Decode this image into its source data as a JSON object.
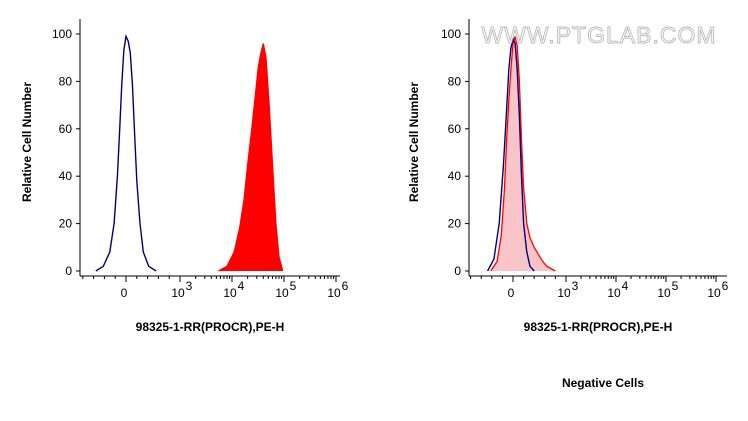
{
  "watermark": "WWW.PTGLAB.COM",
  "caption": "Negative Cells",
  "chart_data": [
    {
      "type": "area",
      "xlabel": "98325-1-RR(PROCR),PE-H",
      "ylabel": "Relative Cell Number",
      "x_scale": "biexponential",
      "xlim": [
        -1000,
        1200000
      ],
      "ylim": [
        0,
        100
      ],
      "y_ticks": [
        0,
        20,
        40,
        60,
        80,
        100
      ],
      "x_tick_labels": [
        {
          "value": 0,
          "base": "0",
          "exp": ""
        },
        {
          "value": 1000,
          "base": "10",
          "exp": "3"
        },
        {
          "value": 10000,
          "base": "10",
          "exp": "4"
        },
        {
          "value": 100000,
          "base": "10",
          "exp": "5"
        },
        {
          "value": 1000000,
          "base": "10",
          "exp": "6"
        }
      ],
      "grid": false,
      "series": [
        {
          "style": "outline",
          "color": "#00007f",
          "x": [
            -560,
            -420,
            -300,
            -220,
            -160,
            -120,
            -80,
            -40,
            0,
            40,
            80,
            120,
            160,
            200,
            260,
            320,
            420,
            560
          ],
          "y": [
            0,
            2,
            8,
            20,
            40,
            58,
            78,
            93,
            99,
            97,
            92,
            78,
            58,
            38,
            20,
            8,
            2,
            0
          ]
        },
        {
          "style": "filled",
          "color": "#ff0000",
          "x": [
            5500,
            8000,
            11000,
            14000,
            17000,
            20000,
            24000,
            28000,
            32000,
            36000,
            40000,
            45000,
            52000,
            60000,
            70000,
            80000,
            95000
          ],
          "y": [
            0,
            2,
            8,
            18,
            30,
            45,
            60,
            74,
            86,
            92,
            96,
            90,
            70,
            45,
            20,
            6,
            0
          ]
        }
      ]
    },
    {
      "type": "area",
      "xlabel": "98325-1-RR(PROCR),PE-H",
      "ylabel": "Relative Cell Number",
      "x_scale": "biexponential",
      "xlim": [
        -1000,
        1200000
      ],
      "ylim": [
        0,
        100
      ],
      "y_ticks": [
        0,
        20,
        40,
        60,
        80,
        100
      ],
      "x_tick_labels": [
        {
          "value": 0,
          "base": "0",
          "exp": ""
        },
        {
          "value": 1000,
          "base": "10",
          "exp": "3"
        },
        {
          "value": 10000,
          "base": "10",
          "exp": "4"
        },
        {
          "value": 100000,
          "base": "10",
          "exp": "5"
        },
        {
          "value": 1000000,
          "base": "10",
          "exp": "6"
        }
      ],
      "grid": false,
      "series": [
        {
          "style": "filled",
          "color": "#ff0000",
          "fill": "#f9c4c8",
          "x": [
            -420,
            -300,
            -220,
            -160,
            -120,
            -80,
            -40,
            0,
            40,
            80,
            120,
            160,
            200,
            260,
            320,
            400,
            480,
            560,
            640,
            800
          ],
          "y": [
            0,
            4,
            15,
            35,
            55,
            72,
            85,
            96,
            99,
            95,
            80,
            55,
            35,
            20,
            14,
            10,
            7,
            4,
            2,
            0
          ]
        },
        {
          "style": "outline",
          "color": "#00007f",
          "x": [
            -480,
            -360,
            -260,
            -180,
            -120,
            -80,
            -40,
            0,
            40,
            80,
            120,
            160,
            200,
            260,
            320,
            400
          ],
          "y": [
            0,
            5,
            20,
            45,
            68,
            85,
            94,
            98,
            96,
            85,
            65,
            40,
            20,
            8,
            2,
            0
          ]
        }
      ]
    }
  ]
}
